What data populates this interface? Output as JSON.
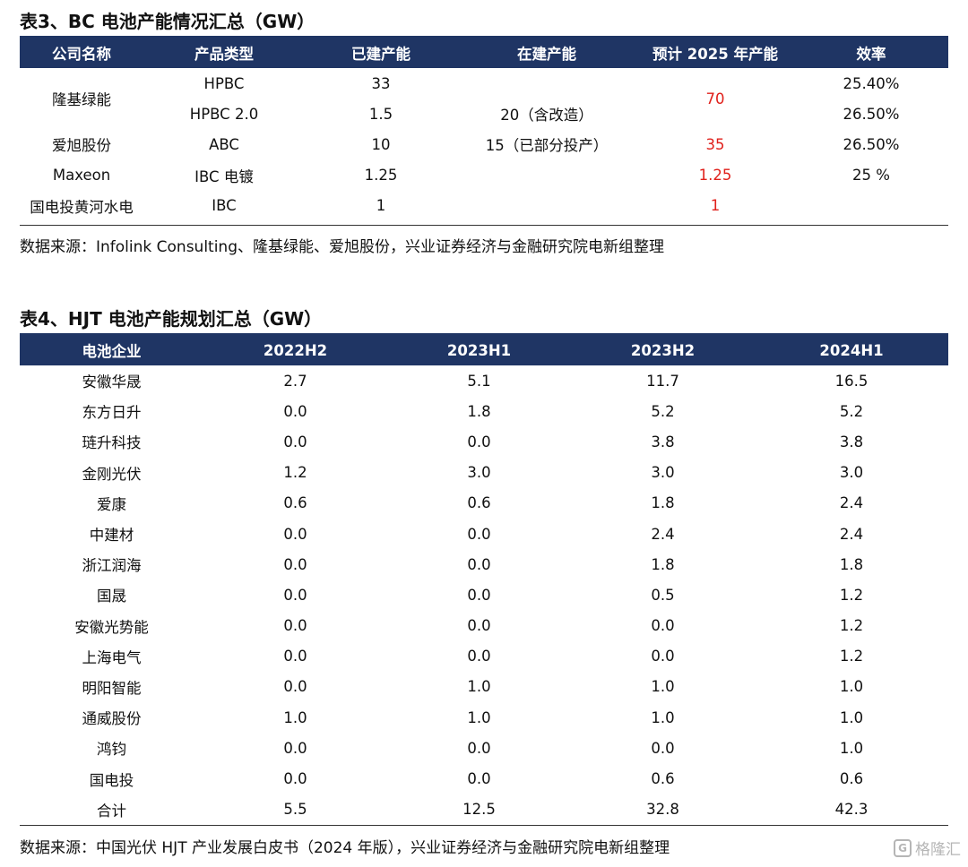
{
  "table3": {
    "title": "表3、BC 电池产能情况汇总（GW）",
    "headers": [
      "公司名称",
      "产品类型",
      "已建产能",
      "在建产能",
      "预计 2025 年产能",
      "效率"
    ],
    "longi": {
      "company": "隆基绿能",
      "row1": {
        "product": "HPBC",
        "built": "33",
        "efficiency": "25.40%"
      },
      "row2": {
        "product": "HPBC 2.0",
        "built": "1.5",
        "building": "20（含改造）",
        "efficiency": "26.50%"
      },
      "expected": "70"
    },
    "aiko": {
      "company": "爱旭股份",
      "product": "ABC",
      "built": "10",
      "building": "15（已部分投产）",
      "expected": "35",
      "efficiency": "26.50%"
    },
    "maxeon": {
      "company": "Maxeon",
      "product": "IBC 电镀",
      "built": "1.25",
      "expected": "1.25",
      "efficiency": "25 %"
    },
    "huanghe": {
      "company": "国电投黄河水电",
      "product": "IBC",
      "built": "1",
      "expected": "1"
    },
    "source": "数据来源：Infolink Consulting、隆基绿能、爱旭股份，兴业证券经济与金融研究院电新组整理"
  },
  "table4": {
    "title": "表4、HJT 电池产能规划汇总（GW）",
    "headers": [
      "电池企业",
      "2022H2",
      "2023H1",
      "2023H2",
      "2024H1"
    ],
    "rows": [
      [
        "安徽华晟",
        "2.7",
        "5.1",
        "11.7",
        "16.5"
      ],
      [
        "东方日升",
        "0.0",
        "1.8",
        "5.2",
        "5.2"
      ],
      [
        "琏升科技",
        "0.0",
        "0.0",
        "3.8",
        "3.8"
      ],
      [
        "金刚光伏",
        "1.2",
        "3.0",
        "3.0",
        "3.0"
      ],
      [
        "爱康",
        "0.6",
        "0.6",
        "1.8",
        "2.4"
      ],
      [
        "中建材",
        "0.0",
        "0.0",
        "2.4",
        "2.4"
      ],
      [
        "浙江润海",
        "0.0",
        "0.0",
        "1.8",
        "1.8"
      ],
      [
        "国晟",
        "0.0",
        "0.0",
        "0.5",
        "1.2"
      ],
      [
        "安徽光势能",
        "0.0",
        "0.0",
        "0.0",
        "1.2"
      ],
      [
        "上海电气",
        "0.0",
        "0.0",
        "0.0",
        "1.2"
      ],
      [
        "明阳智能",
        "0.0",
        "1.0",
        "1.0",
        "1.0"
      ],
      [
        "通威股份",
        "1.0",
        "1.0",
        "1.0",
        "1.0"
      ],
      [
        "鸿钧",
        "0.0",
        "0.0",
        "0.0",
        "1.0"
      ],
      [
        "国电投",
        "0.0",
        "0.0",
        "0.6",
        "0.6"
      ],
      [
        "合计",
        "5.5",
        "12.5",
        "32.8",
        "42.3"
      ]
    ],
    "source": "数据来源：中国光伏 HJT 产业发展白皮书（2024 年版），兴业证券经济与金融研究院电新组整理"
  },
  "watermark": {
    "text": "格隆汇",
    "logo": "G"
  }
}
